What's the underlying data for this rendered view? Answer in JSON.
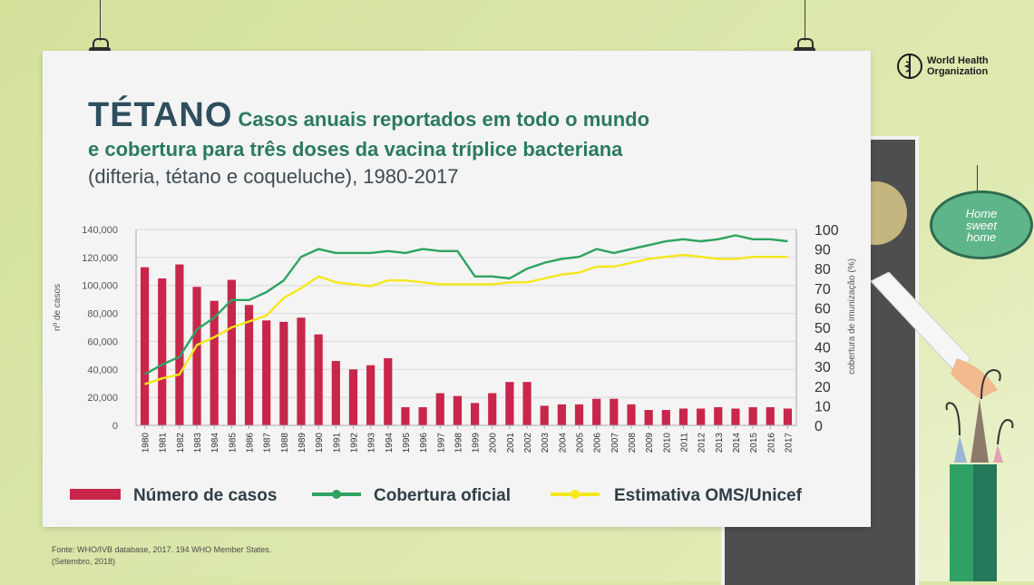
{
  "header": {
    "title_big": "TÉTANO",
    "title_line1": "Casos anuais reportados em todo o mundo",
    "title_line2": "e cobertura para três doses da vacina tríplice bacteriana",
    "title_line3": "(difteria, tétano e coqueluche), 1980-2017"
  },
  "logo": {
    "name": "World Health Organization",
    "line1": "World Health",
    "line2": "Organization"
  },
  "decor": {
    "sign_text_1": "Home",
    "sign_text_2": "sweet",
    "sign_text_3": "home"
  },
  "source": {
    "line1": "Fonte: WHO/IVB database, 2017. 194 WHO Member States.",
    "line2": "(Setembro, 2018)"
  },
  "legend": {
    "cases": "Número de casos",
    "official": "Cobertura oficial",
    "estimate": "Estimativa OMS/Unicef"
  },
  "colors": {
    "bars": "#c8264b",
    "official": "#2ea361",
    "estimate": "#f5e71c",
    "title": "#2b7a5f"
  },
  "chart_data": {
    "type": "bar",
    "title": "Casos anuais reportados em todo o mundo e cobertura para três doses da vacina tríplice bacteriana (difteria, tétano e coqueluche), 1980-2017",
    "ylabel": "nº de casos",
    "y2label": "cobertura de imunização (%)",
    "ylim": [
      0,
      140000
    ],
    "y2lim": [
      0,
      100
    ],
    "yticks": [
      "0",
      "20,000",
      "40,000",
      "60,000",
      "80,000",
      "100,000",
      "120,000",
      "140,000"
    ],
    "y2ticks": [
      "0",
      "10",
      "20",
      "30",
      "40",
      "50",
      "60",
      "70",
      "80",
      "90",
      "100"
    ],
    "grid": true,
    "legend_position": "bottom",
    "categories": [
      "1980",
      "1981",
      "1982",
      "1983",
      "1984",
      "1985",
      "1986",
      "1987",
      "1988",
      "1989",
      "1990",
      "1991",
      "1992",
      "1993",
      "1994",
      "1995",
      "1996",
      "1997",
      "1998",
      "1999",
      "2000",
      "2001",
      "2002",
      "2003",
      "2004",
      "2005",
      "2006",
      "2007",
      "2008",
      "2009",
      "2010",
      "2011",
      "2012",
      "2013",
      "2014",
      "2015",
      "2016",
      "2017"
    ],
    "series": [
      {
        "name": "Número de casos",
        "type": "bar",
        "axis": "left",
        "values": [
          113000,
          105000,
          115000,
          99000,
          89000,
          104000,
          86000,
          75000,
          74000,
          77000,
          65000,
          46000,
          40000,
          43000,
          48000,
          13000,
          13000,
          23000,
          21000,
          16000,
          23000,
          31000,
          31000,
          14000,
          15000,
          15000,
          19000,
          19000,
          15000,
          11000,
          11000,
          12000,
          12000,
          13000,
          12000,
          13000,
          13000,
          12000
        ]
      },
      {
        "name": "Cobertura oficial",
        "type": "line",
        "axis": "right",
        "values": [
          26,
          31,
          35,
          49,
          55,
          64,
          64,
          68,
          74,
          86,
          90,
          88,
          88,
          88,
          89,
          88,
          90,
          89,
          89,
          76,
          76,
          75,
          80,
          83,
          85,
          86,
          90,
          88,
          90,
          92,
          94,
          95,
          94,
          95,
          97,
          95,
          95,
          94
        ]
      },
      {
        "name": "Estimativa OMS/Unicef",
        "type": "line",
        "axis": "right",
        "values": [
          21,
          24,
          26,
          41,
          45,
          50,
          53,
          56,
          65,
          70,
          76,
          73,
          72,
          71,
          74,
          74,
          73,
          72,
          72,
          72,
          72,
          73,
          73,
          75,
          77,
          78,
          81,
          81,
          83,
          85,
          86,
          87,
          86,
          85,
          85,
          86,
          86,
          86
        ]
      }
    ]
  }
}
